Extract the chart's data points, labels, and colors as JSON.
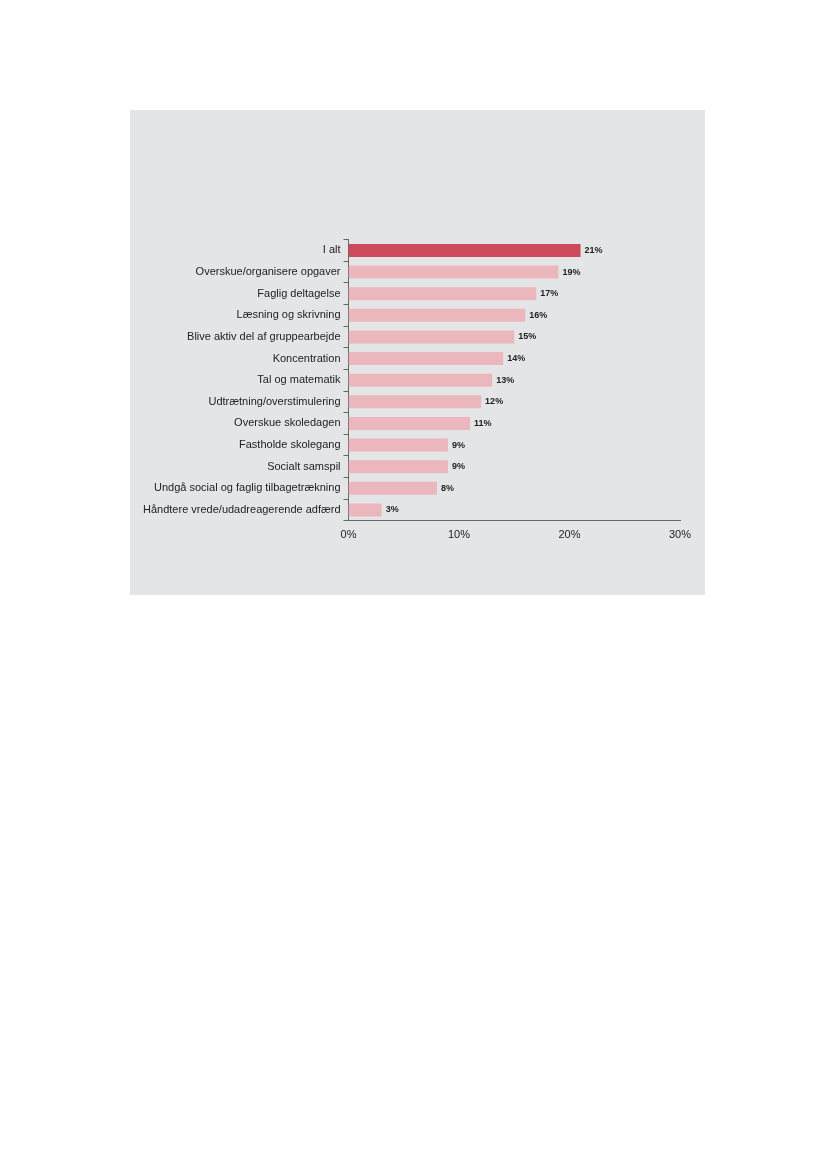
{
  "chart_data": {
    "type": "bar",
    "orientation": "horizontal",
    "categories": [
      "I alt",
      "Overskue/organisere opgaver",
      "Faglig deltagelse",
      "Læsning og skrivning",
      "Blive aktiv del af gruppearbejde",
      "Koncentration",
      "Tal og matematik",
      "Udtrætning/overstimulering",
      "Overskue skoledagen",
      "Fastholde skolegang",
      "Socialt samspil",
      "Undgå social og faglig tilbagetrækning",
      "Håndtere vrede/udadreagerende adfærd"
    ],
    "values": [
      21,
      19,
      17,
      16,
      15,
      14,
      13,
      12,
      11,
      9,
      9,
      8,
      3
    ],
    "colors": [
      "#cd4a5b",
      "#ecb7bc",
      "#ecb7bc",
      "#ecb7bc",
      "#ecb7bc",
      "#ecb7bc",
      "#ecb7bc",
      "#ecb7bc",
      "#ecb7bc",
      "#ecb7bc",
      "#ecb7bc",
      "#ecb7bc",
      "#ecb7bc"
    ],
    "value_labels": [
      "21%",
      "19%",
      "17%",
      "16%",
      "15%",
      "14%",
      "13%",
      "12%",
      "11%",
      "9%",
      "9%",
      "8%",
      "3%"
    ],
    "xlim": [
      0,
      30
    ],
    "xticks": [
      {
        "value": 0,
        "label": "0%"
      },
      {
        "value": 10,
        "label": "10%"
      },
      {
        "value": 20,
        "label": "20%"
      },
      {
        "value": 30,
        "label": "30%"
      }
    ],
    "grid": false,
    "legend": false
  }
}
